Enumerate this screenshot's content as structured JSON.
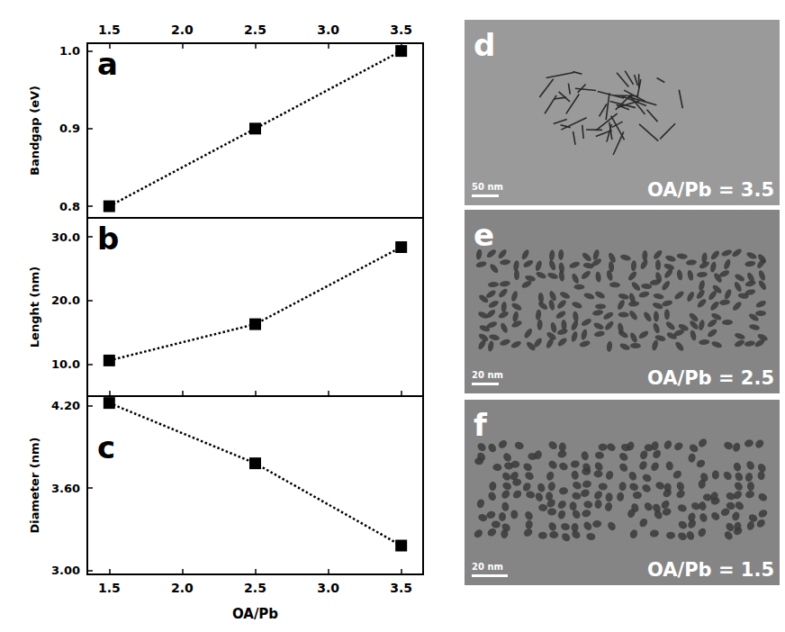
{
  "chart_data": [
    {
      "type": "line",
      "title": "a",
      "ylabel": "Bandgap (eV)",
      "x": [
        1.5,
        2.5,
        3.5
      ],
      "values": [
        0.8,
        0.9,
        1.0
      ],
      "xlim": [
        1.35,
        3.65
      ],
      "xticks": [
        1.5,
        {
          "value": 2,
          "label": "2.0"
        },
        2.5,
        {
          "value": 3,
          "label": "3.0"
        },
        3.5
      ],
      "ylim": [
        0.785,
        1.01
      ],
      "yticks": [
        0.8,
        0.9,
        {
          "value": 1,
          "label": "1.0"
        }
      ],
      "color": "#000000",
      "marker": "square",
      "line_style": "dotted",
      "grid": false
    },
    {
      "type": "line",
      "title": "b",
      "ylabel": "Lenght (nm)",
      "x": [
        1.5,
        2.5,
        3.5
      ],
      "values": [
        10.6,
        16.3,
        28.4
      ],
      "xlim": [
        1.35,
        3.65
      ],
      "xticks": [
        1.5,
        {
          "value": 2,
          "label": "2.0"
        },
        2.5,
        {
          "value": 3,
          "label": "3.0"
        },
        3.5
      ],
      "ylim": [
        5,
        33
      ],
      "yticks": [
        {
          "value": 10,
          "label": "10.0"
        },
        {
          "value": 20,
          "label": "20.0"
        },
        {
          "value": 30,
          "label": "30.0"
        }
      ],
      "tick_labels": "y",
      "color": "#000000",
      "marker": "square",
      "line_style": "dotted",
      "grid": false
    },
    {
      "type": "line",
      "title": "c",
      "ylabel": "Diameter (nm)",
      "xlabel": "OA/Pb",
      "x": [
        1.5,
        2.5,
        3.5
      ],
      "values": [
        4.22,
        3.78,
        3.18
      ],
      "xlim": [
        1.35,
        3.65
      ],
      "xticks": [
        1.5,
        {
          "value": 2,
          "label": "2.0"
        },
        2.5,
        {
          "value": 3,
          "label": "3.0"
        },
        3.5
      ],
      "ylim": [
        2.97,
        4.27
      ],
      "yticks": [
        {
          "value": 3,
          "label": "3.00"
        },
        {
          "value": 3.6,
          "label": "3.60"
        },
        {
          "value": 4.2,
          "label": "4.20"
        }
      ],
      "color": "#000000",
      "marker": "square",
      "line_style": "dotted",
      "grid": false
    }
  ],
  "images": [
    {
      "letter": "d",
      "scale_bar": "50 nm",
      "caption": "OA/Pb = 3.5"
    },
    {
      "letter": "e",
      "scale_bar": "20 nm",
      "caption": "OA/Pb = 2.5"
    },
    {
      "letter": "f",
      "scale_bar": "20 nm",
      "caption": "OA/Pb = 1.5"
    }
  ]
}
